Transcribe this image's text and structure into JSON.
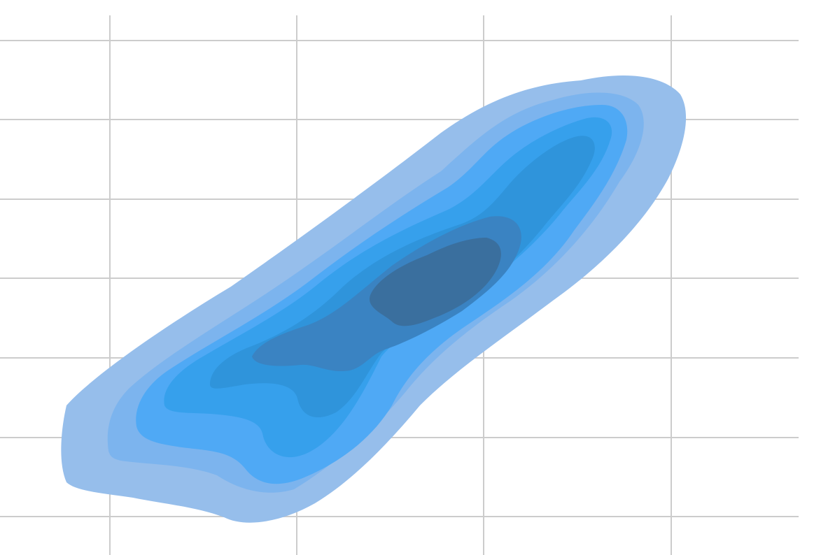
{
  "chart_data": {
    "type": "density",
    "title": "",
    "xlabel": "",
    "ylabel": "",
    "grid": true,
    "legend": "none",
    "series": [
      {
        "values": []
      }
    ],
    "contour_levels": [
      {
        "level": 1,
        "color": "#96BEEB"
      },
      {
        "level": 2,
        "color": "#7CB4EE"
      },
      {
        "level": 3,
        "color": "#4FA9F5"
      },
      {
        "level": 4,
        "color": "#36A0EC"
      },
      {
        "level": 5,
        "color": "#2F94DB"
      },
      {
        "level": 6,
        "color": "#3A83C2"
      },
      {
        "level": 7,
        "color": "#3A6F9E"
      }
    ],
    "colors": {
      "grid": "#cccccc",
      "background": "#ffffff"
    }
  }
}
